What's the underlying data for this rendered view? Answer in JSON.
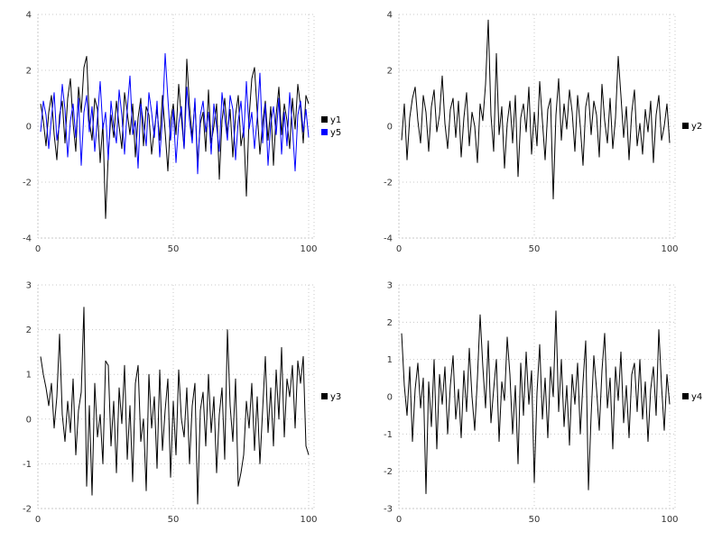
{
  "page": {
    "background": "#ffffff",
    "grid_color": "#c8c8c8",
    "tick_label_color": "#333333"
  },
  "chart_data": [
    {
      "type": "line",
      "title": "",
      "xlabel": "",
      "ylabel": "",
      "xlim": [
        0,
        102
      ],
      "ylim": [
        -4,
        4
      ],
      "xticks": [
        0,
        50,
        100
      ],
      "yticks": [
        -4,
        -2,
        0,
        2,
        4
      ],
      "grid": true,
      "legend_position": "right",
      "x_start": 1,
      "series": [
        {
          "name": "y1",
          "color": "#000000",
          "values": [
            0.8,
            0.2,
            -0.7,
            0.5,
            1.1,
            -0.3,
            -1.2,
            0.4,
            0.9,
            -0.6,
            1.0,
            1.7,
            0.1,
            -0.9,
            1.4,
            0.5,
            2.1,
            2.5,
            0.2,
            -0.5,
            1.0,
            0.6,
            -1.3,
            0.1,
            -3.3,
            -1.0,
            0.4,
            -0.4,
            0.9,
            0.0,
            -0.8,
            1.2,
            0.5,
            -0.3,
            0.8,
            -1.1,
            0.3,
            1.0,
            -0.7,
            0.7,
            0.4,
            -1.0,
            -0.1,
            0.6,
            -0.5,
            1.1,
            -0.2,
            -1.6,
            0.2,
            0.8,
            -0.3,
            1.5,
            0.3,
            -0.8,
            2.4,
            0.7,
            -0.4,
            0.9,
            -1.3,
            0.1,
            0.5,
            -0.9,
            1.3,
            -0.6,
            0.0,
            0.8,
            -1.9,
            0.2,
            1.0,
            -0.3,
            0.6,
            -1.1,
            0.4,
            1.1,
            -0.7,
            -0.1,
            -2.5,
            0.3,
            1.7,
            2.1,
            0.5,
            -1.0,
            0.1,
            0.9,
            -0.5,
            0.7,
            -1.4,
            0.4,
            1.4,
            -0.3,
            0.8,
            0.2,
            -0.8,
            1.0,
            -0.1,
            1.5,
            0.7,
            -0.6,
            1.1,
            0.8
          ]
        },
        {
          "name": "y5",
          "color": "#0000ff",
          "values": [
            -0.2,
            0.9,
            0.4,
            -0.8,
            0.3,
            1.2,
            -0.5,
            0.1,
            1.5,
            0.6,
            -1.1,
            0.2,
            0.8,
            -0.4,
            1.0,
            -1.4,
            0.5,
            1.1,
            -0.2,
            0.7,
            -0.9,
            0.3,
            1.6,
            -0.1,
            0.5,
            -1.2,
            0.9,
            0.0,
            -0.6,
            1.3,
            0.4,
            -1.0,
            0.6,
            1.8,
            -0.3,
            0.2,
            -1.5,
            0.8,
            0.1,
            -0.7,
            1.2,
            0.5,
            -0.4,
            0.9,
            -1.1,
            0.3,
            2.6,
            1.0,
            -0.5,
            0.6,
            -1.3,
            0.1,
            0.7,
            -0.8,
            1.4,
            0.2,
            -0.6,
            1.0,
            -1.7,
            0.4,
            0.9,
            -0.2,
            0.5,
            -1.0,
            0.8,
            0.0,
            -0.9,
            1.2,
            0.3,
            -0.5,
            1.1,
            0.6,
            -1.2,
            0.2,
            0.9,
            -0.4,
            1.6,
            -0.1,
            0.5,
            -0.8,
            0.3,
            1.9,
            -0.6,
            0.8,
            -1.4,
            0.1,
            0.7,
            -0.3,
            1.0,
            -1.0,
            0.5,
            -0.7,
            1.2,
            0.0,
            -1.6,
            0.4,
            0.9,
            -0.2,
            0.6,
            -0.4
          ]
        }
      ]
    },
    {
      "type": "line",
      "title": "",
      "xlabel": "",
      "ylabel": "",
      "xlim": [
        0,
        102
      ],
      "ylim": [
        -4,
        4
      ],
      "xticks": [
        0,
        50,
        100
      ],
      "yticks": [
        -4,
        -2,
        0,
        2,
        4
      ],
      "grid": true,
      "legend_position": "right",
      "x_start": 1,
      "series": [
        {
          "name": "y2",
          "color": "#000000",
          "values": [
            -0.5,
            0.8,
            -1.2,
            0.3,
            1.0,
            1.4,
            0.2,
            -0.6,
            1.1,
            0.5,
            -0.9,
            0.7,
            1.3,
            -0.2,
            0.4,
            1.8,
            0.1,
            -0.8,
            0.6,
            1.0,
            -0.4,
            0.9,
            -1.1,
            0.3,
            1.2,
            -0.7,
            0.5,
            0.0,
            -1.3,
            0.8,
            0.2,
            1.5,
            3.8,
            0.4,
            -0.9,
            2.6,
            -0.3,
            0.7,
            -1.5,
            0.1,
            0.9,
            -0.6,
            1.1,
            -1.8,
            0.3,
            0.8,
            -0.2,
            1.4,
            -1.0,
            0.5,
            -0.7,
            1.6,
            0.2,
            -1.2,
            0.6,
            1.0,
            -2.6,
            0.4,
            1.7,
            -0.5,
            0.8,
            -0.1,
            1.3,
            0.5,
            -0.9,
            1.1,
            0.0,
            -1.4,
            0.7,
            1.2,
            -0.3,
            0.9,
            0.4,
            -1.1,
            1.5,
            0.2,
            -0.6,
            1.0,
            -0.8,
            0.3,
            2.5,
            1.1,
            -0.4,
            0.7,
            -1.2,
            0.5,
            1.3,
            -0.7,
            0.1,
            -1.0,
            0.6,
            -0.2,
            0.9,
            -1.3,
            0.4,
            1.1,
            -0.5,
            0.0,
            0.8,
            -0.6
          ]
        }
      ]
    },
    {
      "type": "line",
      "title": "",
      "xlabel": "",
      "ylabel": "",
      "xlim": [
        0,
        102
      ],
      "ylim": [
        -2,
        3
      ],
      "xticks": [
        0,
        50,
        100
      ],
      "yticks": [
        -2,
        -1,
        0,
        1,
        2,
        3
      ],
      "grid": true,
      "legend_position": "right",
      "x_start": 1,
      "series": [
        {
          "name": "y3",
          "color": "#000000",
          "values": [
            1.4,
            1.0,
            0.7,
            0.3,
            0.8,
            -0.2,
            0.5,
            1.9,
            0.1,
            -0.5,
            0.4,
            -0.3,
            0.9,
            -0.8,
            0.2,
            0.6,
            2.5,
            -1.5,
            0.3,
            -1.7,
            0.8,
            -0.4,
            0.1,
            -1.0,
            1.3,
            1.2,
            -0.6,
            0.4,
            -1.2,
            0.7,
            -0.1,
            1.2,
            -0.9,
            0.3,
            -1.4,
            0.8,
            1.2,
            -0.5,
            0.0,
            -1.6,
            1.0,
            -0.2,
            0.5,
            -1.1,
            1.1,
            -0.7,
            0.2,
            0.9,
            -1.3,
            0.4,
            -0.8,
            1.1,
            0.0,
            -0.4,
            0.7,
            -1.0,
            0.3,
            0.8,
            -1.9,
            0.2,
            0.6,
            -0.6,
            1.0,
            -0.3,
            0.5,
            -1.2,
            0.1,
            0.7,
            -0.9,
            2.0,
            0.3,
            -0.5,
            0.9,
            -1.5,
            -1.2,
            -0.8,
            0.4,
            -0.2,
            0.8,
            -0.7,
            0.5,
            -1.0,
            0.2,
            1.4,
            -0.3,
            0.7,
            -0.6,
            1.1,
            0.0,
            1.6,
            -0.4,
            0.9,
            0.5,
            1.2,
            -0.2,
            1.3,
            0.8,
            1.4,
            -0.6,
            -0.8
          ]
        }
      ]
    },
    {
      "type": "line",
      "title": "",
      "xlabel": "",
      "ylabel": "",
      "xlim": [
        0,
        102
      ],
      "ylim": [
        -3,
        3
      ],
      "xticks": [
        0,
        50,
        100
      ],
      "yticks": [
        -3,
        -2,
        -1,
        0,
        1,
        2,
        3
      ],
      "grid": true,
      "legend_position": "right",
      "x_start": 1,
      "series": [
        {
          "name": "y4",
          "color": "#000000",
          "values": [
            1.7,
            0.3,
            -0.5,
            0.8,
            -1.2,
            0.2,
            0.9,
            -0.3,
            0.5,
            -2.6,
            0.4,
            -0.8,
            1.0,
            -1.4,
            0.6,
            -0.2,
            0.8,
            -1.0,
            0.3,
            1.1,
            -0.6,
            0.2,
            -1.1,
            0.7,
            -0.4,
            1.3,
            0.0,
            -0.9,
            0.5,
            2.2,
            0.8,
            -0.3,
            1.5,
            -0.7,
            0.2,
            1.0,
            -1.2,
            0.4,
            -0.1,
            1.6,
            0.6,
            -1.0,
            0.3,
            -1.8,
            0.9,
            -0.5,
            1.2,
            -0.2,
            0.7,
            -2.3,
            0.1,
            1.4,
            -0.6,
            0.5,
            -1.1,
            0.8,
            0.0,
            2.3,
            -0.4,
            1.0,
            -0.8,
            0.3,
            -1.3,
            0.6,
            -0.2,
            0.9,
            -1.0,
            0.4,
            1.5,
            -2.5,
            -0.5,
            1.1,
            0.2,
            -0.9,
            0.7,
            1.7,
            -0.3,
            0.5,
            -1.4,
            0.8,
            -0.1,
            1.2,
            -0.7,
            0.3,
            -1.1,
            0.6,
            0.9,
            -0.4,
            1.0,
            -0.6,
            0.4,
            -1.2,
            0.2,
            0.8,
            -0.5,
            1.8,
            0.3,
            -0.9,
            0.6,
            -0.2
          ]
        }
      ]
    }
  ]
}
